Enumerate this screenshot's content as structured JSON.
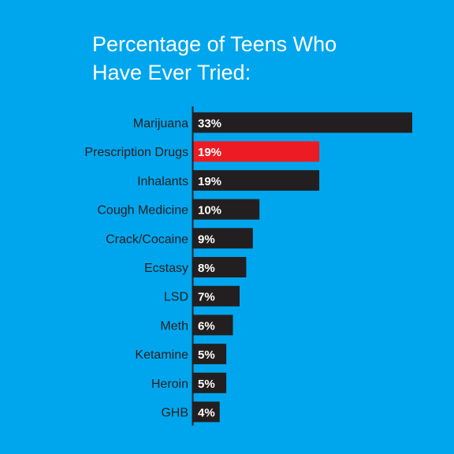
{
  "colors": {
    "background": "#00A6ED",
    "bar": "#231F20",
    "highlight": "#ED1C24",
    "title_text": "#FFFFFF",
    "label_text": "#231F20",
    "value_text": "#FFFFFF",
    "axis": "#231F20"
  },
  "chart_data": {
    "type": "bar",
    "orientation": "horizontal",
    "title_lines": [
      "Percentage of Teens Who",
      "Have Ever Tried:"
    ],
    "categories": [
      "Marijuana",
      "Prescription Drugs",
      "Inhalants",
      "Cough Medicine",
      "Crack/Cocaine",
      "Ecstasy",
      "LSD",
      "Meth",
      "Ketamine",
      "Heroin",
      "GHB"
    ],
    "values": [
      33,
      19,
      19,
      10,
      9,
      8,
      7,
      6,
      5,
      5,
      4
    ],
    "value_labels": [
      "33%",
      "19%",
      "19%",
      "10%",
      "9%",
      "8%",
      "7%",
      "6%",
      "5%",
      "5%",
      "4%"
    ],
    "highlight_index": 1,
    "xlim": [
      0,
      33
    ],
    "grid": false,
    "legend": "none"
  }
}
